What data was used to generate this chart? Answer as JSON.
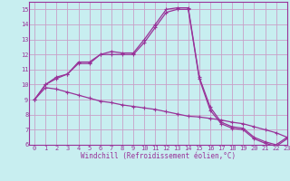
{
  "background_color": "#c8eef0",
  "grid_color": "#c8a0c8",
  "line_color": "#993399",
  "spine_color": "#993399",
  "xlim": [
    -0.5,
    23
  ],
  "ylim": [
    6,
    15.5
  ],
  "xticks": [
    0,
    1,
    2,
    3,
    4,
    5,
    6,
    7,
    8,
    9,
    10,
    11,
    12,
    13,
    14,
    15,
    16,
    17,
    18,
    19,
    20,
    21,
    22,
    23
  ],
  "yticks": [
    6,
    7,
    8,
    9,
    10,
    11,
    12,
    13,
    14,
    15
  ],
  "xlabel": "Windchill (Refroidissement éolien,°C)",
  "line1_x": [
    0,
    1,
    2,
    3,
    4,
    5,
    6,
    7,
    8,
    9,
    10,
    11,
    12,
    13,
    14,
    15,
    16,
    17,
    18,
    19,
    20,
    21,
    22,
    23
  ],
  "line1_y": [
    9.0,
    10.0,
    10.5,
    10.7,
    11.5,
    11.5,
    12.0,
    12.2,
    12.1,
    12.1,
    13.0,
    14.0,
    15.0,
    15.1,
    15.1,
    10.5,
    8.5,
    7.5,
    7.2,
    7.1,
    6.5,
    6.2,
    6.0,
    6.5
  ],
  "line2_x": [
    0,
    1,
    2,
    3,
    4,
    5,
    6,
    7,
    8,
    9,
    10,
    11,
    12,
    13,
    14,
    15,
    16,
    17,
    18,
    19,
    20,
    21,
    22,
    23
  ],
  "line2_y": [
    9.0,
    10.0,
    10.4,
    10.7,
    11.4,
    11.4,
    12.0,
    12.0,
    12.0,
    12.0,
    12.8,
    13.8,
    14.8,
    15.0,
    15.0,
    10.4,
    8.3,
    7.4,
    7.1,
    7.0,
    6.4,
    6.1,
    5.9,
    6.4
  ],
  "line3_x": [
    0,
    1,
    2,
    3,
    4,
    5,
    6,
    7,
    8,
    9,
    10,
    11,
    12,
    13,
    14,
    15,
    16,
    17,
    18,
    19,
    20,
    21,
    22,
    23
  ],
  "line3_y": [
    9.0,
    9.8,
    9.7,
    9.5,
    9.3,
    9.1,
    8.9,
    8.8,
    8.65,
    8.55,
    8.45,
    8.35,
    8.2,
    8.05,
    7.9,
    7.85,
    7.75,
    7.65,
    7.5,
    7.4,
    7.2,
    7.0,
    6.8,
    6.5
  ],
  "tick_fontsize": 5.0,
  "xlabel_fontsize": 5.5
}
